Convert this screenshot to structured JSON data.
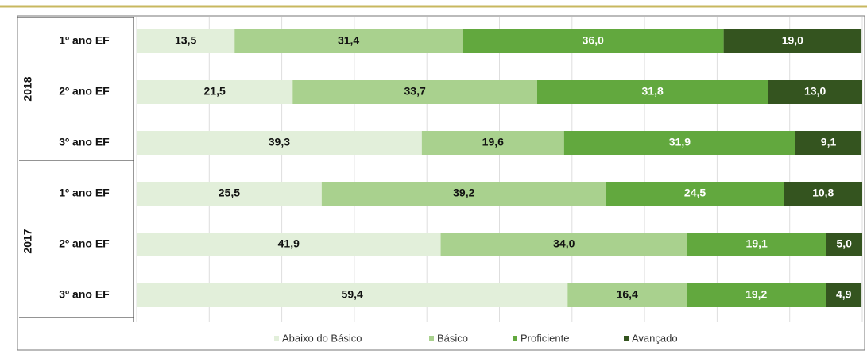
{
  "chart_data": {
    "type": "stacked-bar-horizontal",
    "groups": [
      {
        "name": "2018",
        "categories": [
          "1º ano EF",
          "2º ano EF",
          "3º ano EF"
        ]
      },
      {
        "name": "2017",
        "categories": [
          "1º ano EF",
          "2º ano EF",
          "3º ano EF"
        ]
      }
    ],
    "series": [
      {
        "name": "Abaixo do Básico",
        "color": "#e2efda",
        "label_color": "#111111",
        "values": [
          13.5,
          21.5,
          39.3,
          25.5,
          41.9,
          59.4
        ],
        "value_labels": [
          "13,5",
          "21,5",
          "39,3",
          "25,5",
          "41,9",
          "59,4"
        ]
      },
      {
        "name": "Básico",
        "color": "#a9d18e",
        "label_color": "#111111",
        "values": [
          31.4,
          33.7,
          19.6,
          39.2,
          34.0,
          16.4
        ],
        "value_labels": [
          "31,4",
          "33,7",
          "19,6",
          "39,2",
          "34,0",
          "16,4"
        ]
      },
      {
        "name": "Proficiente",
        "color": "#62a83e",
        "label_color": "#ffffff",
        "values": [
          36.0,
          31.8,
          31.9,
          24.5,
          19.1,
          19.2
        ],
        "value_labels": [
          "36,0",
          "31,8",
          "31,9",
          "24,5",
          "19,1",
          "19,2"
        ]
      },
      {
        "name": "Avançado",
        "color": "#34541f",
        "label_color": "#ffffff",
        "values": [
          19.0,
          13.0,
          9.1,
          10.8,
          5.0,
          4.9
        ],
        "value_labels": [
          "19,0",
          "13,0",
          "9,1",
          "10,8",
          "5,0",
          "4,9"
        ]
      }
    ],
    "xlim": [
      0,
      100
    ],
    "xticks": [
      0,
      10,
      20,
      30,
      40,
      50,
      60,
      70,
      80,
      90,
      100
    ],
    "grid": true
  }
}
